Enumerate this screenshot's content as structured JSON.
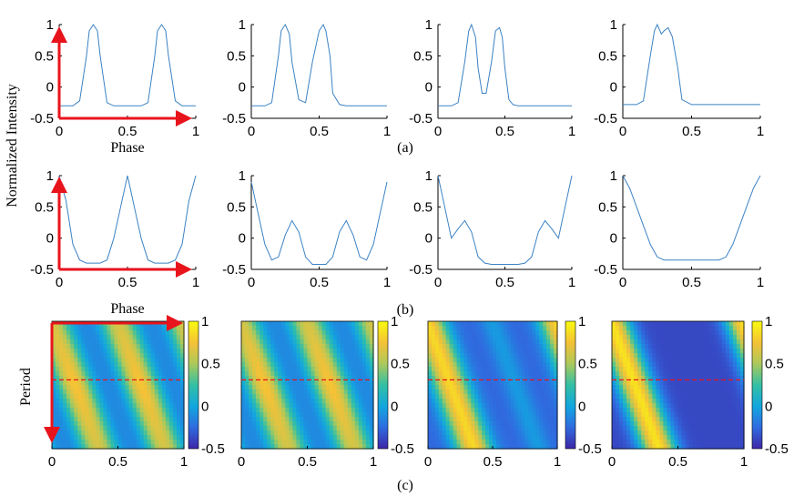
{
  "figure": {
    "ylabel": "Normalized Intensity",
    "row_c_ylabel": "Period",
    "row_a_xlabel": "Phase",
    "row_b_xlabel": "Phase",
    "panel_labels": [
      "(a)",
      "(b)",
      "(c)"
    ]
  },
  "colors": {
    "line": "#3b82c4",
    "arrow": "#e8141c",
    "dashed": "#e8141c",
    "colormap": [
      "#3e26a8",
      "#2f6ce0",
      "#12a6e0",
      "#34c0a4",
      "#aec95a",
      "#f4c137",
      "#f9fb0e"
    ]
  },
  "chart_data": [
    {
      "type": "line",
      "row": "a",
      "col": 1,
      "x": [
        0,
        0.1,
        0.15,
        0.2,
        0.22,
        0.25,
        0.28,
        0.3,
        0.35,
        0.4,
        0.5,
        0.6,
        0.65,
        0.7,
        0.72,
        0.75,
        0.78,
        0.8,
        0.85,
        0.9,
        1.0
      ],
      "y": [
        -0.3,
        -0.3,
        -0.22,
        0.5,
        0.9,
        1.0,
        0.9,
        0.5,
        -0.25,
        -0.3,
        -0.3,
        -0.3,
        -0.25,
        0.5,
        0.9,
        1.0,
        0.9,
        0.5,
        -0.22,
        -0.3,
        -0.3
      ],
      "xlim": [
        0,
        1
      ],
      "ylim": [
        -0.5,
        1
      ],
      "xticks": [
        "0",
        "0.5",
        "1"
      ],
      "yticks": [
        "-0.5",
        "0",
        "0.5",
        "1"
      ]
    },
    {
      "type": "line",
      "row": "a",
      "col": 2,
      "x": [
        0,
        0.1,
        0.15,
        0.2,
        0.22,
        0.25,
        0.28,
        0.3,
        0.35,
        0.4,
        0.45,
        0.5,
        0.53,
        0.55,
        0.58,
        0.6,
        0.65,
        0.7,
        1.0
      ],
      "y": [
        -0.3,
        -0.3,
        -0.25,
        0.5,
        0.9,
        1.0,
        0.85,
        0.4,
        -0.2,
        -0.25,
        0.4,
        0.9,
        1.0,
        0.9,
        0.5,
        -0.1,
        -0.28,
        -0.3,
        -0.3
      ],
      "xlim": [
        0,
        1
      ],
      "ylim": [
        -0.5,
        1
      ],
      "xticks": [
        "0",
        "0.5",
        "1"
      ],
      "yticks": [
        "-0.5",
        "0",
        "0.5",
        "1"
      ]
    },
    {
      "type": "line",
      "row": "a",
      "col": 3,
      "x": [
        0,
        0.1,
        0.15,
        0.2,
        0.23,
        0.25,
        0.28,
        0.3,
        0.33,
        0.36,
        0.4,
        0.43,
        0.46,
        0.48,
        0.5,
        0.53,
        0.56,
        0.6,
        1.0
      ],
      "y": [
        -0.3,
        -0.3,
        -0.25,
        0.4,
        0.9,
        1.0,
        0.8,
        0.3,
        -0.1,
        -0.1,
        0.4,
        0.9,
        0.95,
        0.8,
        0.3,
        -0.2,
        -0.28,
        -0.3,
        -0.3
      ],
      "xlim": [
        0,
        1
      ],
      "ylim": [
        -0.5,
        1
      ],
      "xticks": [
        "0",
        "0.5",
        "1"
      ],
      "yticks": [
        "-0.5",
        "0",
        "0.5",
        "1"
      ]
    },
    {
      "type": "line",
      "row": "a",
      "col": 4,
      "x": [
        0,
        0.1,
        0.15,
        0.2,
        0.23,
        0.25,
        0.28,
        0.3,
        0.33,
        0.36,
        0.4,
        0.43,
        0.5,
        1.0
      ],
      "y": [
        -0.28,
        -0.28,
        -0.22,
        0.5,
        0.9,
        1.0,
        0.85,
        0.9,
        0.95,
        0.8,
        0.3,
        -0.2,
        -0.28,
        -0.28
      ],
      "xlim": [
        0,
        1
      ],
      "ylim": [
        -0.5,
        1
      ],
      "xticks": [
        "0",
        "0.5",
        "1"
      ],
      "yticks": [
        "-0.5",
        "0",
        "0.5",
        "1"
      ]
    },
    {
      "type": "line",
      "row": "b",
      "col": 1,
      "x": [
        0,
        0.05,
        0.1,
        0.15,
        0.2,
        0.3,
        0.35,
        0.4,
        0.45,
        0.5,
        0.55,
        0.6,
        0.65,
        0.7,
        0.8,
        0.85,
        0.9,
        0.95,
        1.0
      ],
      "y": [
        1.0,
        0.6,
        -0.1,
        -0.35,
        -0.4,
        -0.4,
        -0.35,
        0.0,
        0.5,
        1.0,
        0.5,
        0.0,
        -0.35,
        -0.4,
        -0.4,
        -0.35,
        -0.1,
        0.6,
        1.0
      ],
      "xlim": [
        0,
        1
      ],
      "ylim": [
        -0.5,
        1
      ],
      "xticks": [
        "0",
        "0.5",
        "1"
      ],
      "yticks": [
        "-0.5",
        "0",
        "0.5",
        "1"
      ]
    },
    {
      "type": "line",
      "row": "b",
      "col": 2,
      "x": [
        0,
        0.05,
        0.1,
        0.15,
        0.2,
        0.25,
        0.3,
        0.35,
        0.4,
        0.45,
        0.5,
        0.55,
        0.6,
        0.65,
        0.7,
        0.75,
        0.8,
        0.85,
        0.9,
        0.95,
        1.0
      ],
      "y": [
        0.9,
        0.4,
        -0.1,
        -0.35,
        -0.3,
        0.05,
        0.28,
        0.1,
        -0.3,
        -0.42,
        -0.42,
        -0.42,
        -0.3,
        0.1,
        0.28,
        0.05,
        -0.3,
        -0.35,
        -0.1,
        0.4,
        0.9
      ],
      "xlim": [
        0,
        1
      ],
      "ylim": [
        -0.5,
        1
      ],
      "xticks": [
        "0",
        "0.5",
        "1"
      ],
      "yticks": [
        "-0.5",
        "0",
        "0.5",
        "1"
      ]
    },
    {
      "type": "line",
      "row": "b",
      "col": 3,
      "x": [
        0,
        0.05,
        0.1,
        0.15,
        0.2,
        0.25,
        0.3,
        0.35,
        0.4,
        0.5,
        0.6,
        0.65,
        0.7,
        0.75,
        0.8,
        0.85,
        0.9,
        0.95,
        1.0
      ],
      "y": [
        1.0,
        0.5,
        0.0,
        0.15,
        0.28,
        0.1,
        -0.3,
        -0.4,
        -0.42,
        -0.42,
        -0.42,
        -0.4,
        -0.3,
        0.1,
        0.28,
        0.15,
        0.0,
        0.5,
        1.0
      ],
      "xlim": [
        0,
        1
      ],
      "ylim": [
        -0.5,
        1
      ],
      "xticks": [
        "0",
        "0.5",
        "1"
      ],
      "yticks": [
        "-0.5",
        "0",
        "0.5",
        "1"
      ]
    },
    {
      "type": "line",
      "row": "b",
      "col": 4,
      "x": [
        0,
        0.05,
        0.1,
        0.15,
        0.2,
        0.25,
        0.3,
        0.4,
        0.5,
        0.6,
        0.7,
        0.75,
        0.8,
        0.85,
        0.9,
        0.95,
        1.0
      ],
      "y": [
        1.0,
        0.8,
        0.5,
        0.2,
        -0.1,
        -0.3,
        -0.35,
        -0.35,
        -0.35,
        -0.35,
        -0.35,
        -0.3,
        -0.1,
        0.2,
        0.5,
        0.8,
        1.0
      ],
      "xlim": [
        0,
        1
      ],
      "ylim": [
        -0.5,
        1
      ],
      "xticks": [
        "0",
        "0.5",
        "1"
      ],
      "yticks": [
        "-0.5",
        "0",
        "0.5",
        "1"
      ]
    },
    {
      "type": "heatmap",
      "row": "c",
      "col": 1,
      "peaks": 3,
      "xlim": [
        0,
        1
      ],
      "xticks": [
        "0",
        "0.5",
        "1"
      ],
      "cbar_range": [
        -0.5,
        1
      ],
      "cbar_ticks": [
        "-0.5",
        "0",
        "0.5",
        "1"
      ],
      "dashed_y_fraction": 0.46
    },
    {
      "type": "heatmap",
      "row": "c",
      "col": 2,
      "peaks": 3,
      "xlim": [
        0,
        1
      ],
      "xticks": [
        "0",
        "0.5",
        "1"
      ],
      "cbar_range": [
        -0.5,
        1
      ],
      "cbar_ticks": [
        "-0.5",
        "0",
        "0.5",
        "1"
      ],
      "dashed_y_fraction": 0.46
    },
    {
      "type": "heatmap",
      "row": "c",
      "col": 3,
      "peaks": 2,
      "xlim": [
        0,
        1
      ],
      "xticks": [
        "0",
        "0.5",
        "1"
      ],
      "cbar_range": [
        -0.5,
        1
      ],
      "cbar_ticks": [
        "-0.5",
        "0",
        "0.5",
        "1"
      ],
      "dashed_y_fraction": 0.46
    },
    {
      "type": "heatmap",
      "row": "c",
      "col": 4,
      "peaks": 1,
      "xlim": [
        0,
        1
      ],
      "xticks": [
        "0",
        "0.5",
        "1"
      ],
      "cbar_range": [
        -0.5,
        1
      ],
      "cbar_ticks": [
        "-0.5",
        "0",
        "0.5",
        "1"
      ],
      "dashed_y_fraction": 0.46
    }
  ]
}
